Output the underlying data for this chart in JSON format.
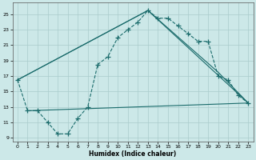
{
  "title": "",
  "xlabel": "Humidex (Indice chaleur)",
  "ylabel": "",
  "bg_color": "#cce8e8",
  "line_color": "#1a6b6b",
  "grid_color": "#aacccc",
  "xlim": [
    -0.5,
    23.5
  ],
  "ylim": [
    8.5,
    26.5
  ],
  "xticks": [
    0,
    1,
    2,
    3,
    4,
    5,
    6,
    7,
    8,
    9,
    10,
    11,
    12,
    13,
    14,
    15,
    16,
    17,
    18,
    19,
    20,
    21,
    22,
    23
  ],
  "yticks": [
    9,
    11,
    13,
    15,
    17,
    19,
    21,
    23,
    25
  ],
  "curve_x": [
    0,
    1,
    2,
    3,
    4,
    5,
    6,
    7,
    8,
    9,
    10,
    11,
    12,
    13,
    14,
    15,
    16,
    17,
    18,
    19,
    20,
    21,
    22,
    23
  ],
  "curve_y": [
    16.5,
    12.5,
    12.5,
    11.0,
    9.5,
    9.5,
    11.5,
    13.0,
    18.5,
    19.5,
    22.0,
    23.0,
    24.0,
    25.5,
    24.5,
    24.5,
    23.5,
    22.5,
    21.5,
    21.5,
    17.0,
    16.5,
    14.5,
    13.5
  ],
  "line1_x": [
    0,
    13,
    20,
    23
  ],
  "line1_y": [
    16.5,
    25.5,
    17.5,
    13.5
  ],
  "line2_x": [
    0,
    13,
    23
  ],
  "line2_y": [
    16.5,
    25.5,
    13.5
  ],
  "line3_x": [
    1,
    23
  ],
  "line3_y": [
    12.5,
    13.5
  ]
}
